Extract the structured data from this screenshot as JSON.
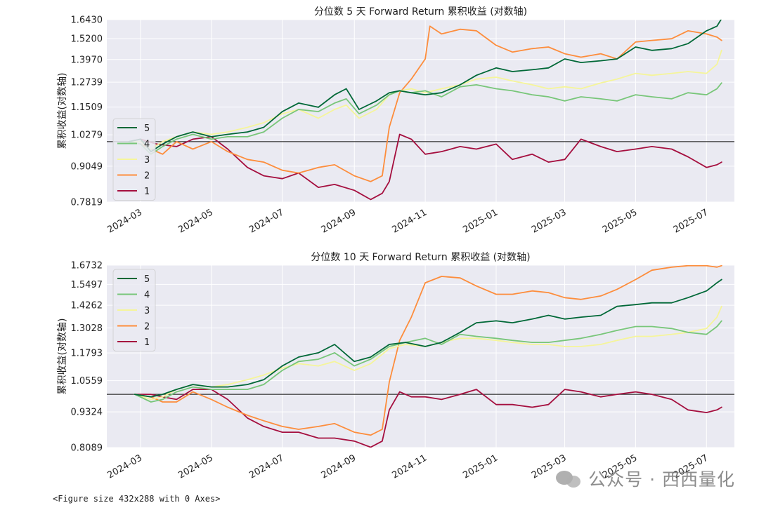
{
  "chart_data": [
    {
      "type": "line",
      "title": "分位数 5 天 Forward Return 累积收益 (对数轴)",
      "ylabel": "累积收益(对数轴)",
      "yscale": "log",
      "ylim": [
        0.7819,
        1.643
      ],
      "yticks": [
        "0.7819",
        "0.9049",
        "1.0279",
        "1.1509",
        "1.2739",
        "1.3970",
        "1.5200",
        "1.6430"
      ],
      "xlim": [
        "2024-02-01",
        "2025-07-25"
      ],
      "xticks": [
        "2024-03",
        "2024-05",
        "2024-07",
        "2024-09",
        "2024-11",
        "2025-01",
        "2025-03",
        "2025-05",
        "2025-07"
      ],
      "hline": 1.0,
      "grid": true,
      "legend_position": "left",
      "series": [
        {
          "name": "5",
          "color": "#006837",
          "x": [
            "2024-02-20",
            "2024-03-01",
            "2024-03-10",
            "2024-03-20",
            "2024-04-01",
            "2024-04-15",
            "2024-05-01",
            "2024-05-15",
            "2024-06-01",
            "2024-06-15",
            "2024-07-01",
            "2024-07-15",
            "2024-08-01",
            "2024-08-15",
            "2024-08-25",
            "2024-09-05",
            "2024-09-20",
            "2024-10-01",
            "2024-10-10",
            "2024-10-20",
            "2024-11-01",
            "2024-11-15",
            "2024-12-01",
            "2024-12-15",
            "2025-01-01",
            "2025-01-15",
            "2025-02-01",
            "2025-02-15",
            "2025-03-01",
            "2025-03-15",
            "2025-04-01",
            "2025-04-15",
            "2025-05-01",
            "2025-05-15",
            "2025-06-01",
            "2025-06-15",
            "2025-07-01",
            "2025-07-10",
            "2025-07-14"
          ],
          "values": [
            1.0,
            1.01,
            0.96,
            0.99,
            1.02,
            1.04,
            1.02,
            1.03,
            1.04,
            1.06,
            1.13,
            1.17,
            1.15,
            1.21,
            1.24,
            1.14,
            1.18,
            1.22,
            1.23,
            1.22,
            1.21,
            1.22,
            1.26,
            1.31,
            1.35,
            1.33,
            1.34,
            1.35,
            1.4,
            1.38,
            1.39,
            1.4,
            1.47,
            1.45,
            1.46,
            1.49,
            1.57,
            1.6,
            1.65
          ]
        },
        {
          "name": "4",
          "color": "#78c679",
          "x": [
            "2024-02-20",
            "2024-03-01",
            "2024-03-10",
            "2024-03-20",
            "2024-04-01",
            "2024-04-15",
            "2024-05-01",
            "2024-05-15",
            "2024-06-01",
            "2024-06-15",
            "2024-07-01",
            "2024-07-15",
            "2024-08-01",
            "2024-08-15",
            "2024-08-25",
            "2024-09-05",
            "2024-09-20",
            "2024-10-01",
            "2024-10-10",
            "2024-10-20",
            "2024-11-01",
            "2024-11-15",
            "2024-12-01",
            "2024-12-15",
            "2025-01-01",
            "2025-01-15",
            "2025-02-01",
            "2025-02-15",
            "2025-03-01",
            "2025-03-15",
            "2025-04-01",
            "2025-04-15",
            "2025-05-01",
            "2025-05-15",
            "2025-06-01",
            "2025-06-15",
            "2025-07-01",
            "2025-07-10",
            "2025-07-14"
          ],
          "values": [
            1.0,
            0.99,
            0.95,
            0.98,
            1.01,
            1.03,
            1.01,
            1.02,
            1.02,
            1.04,
            1.1,
            1.14,
            1.13,
            1.17,
            1.19,
            1.12,
            1.16,
            1.21,
            1.23,
            1.22,
            1.23,
            1.2,
            1.25,
            1.26,
            1.24,
            1.23,
            1.21,
            1.2,
            1.18,
            1.2,
            1.19,
            1.18,
            1.21,
            1.2,
            1.19,
            1.22,
            1.21,
            1.24,
            1.27
          ]
        },
        {
          "name": "3",
          "color": "#f5f59a",
          "x": [
            "2024-02-20",
            "2024-03-01",
            "2024-03-10",
            "2024-03-20",
            "2024-04-01",
            "2024-04-15",
            "2024-05-01",
            "2024-05-15",
            "2024-06-01",
            "2024-06-15",
            "2024-07-01",
            "2024-07-15",
            "2024-08-01",
            "2024-08-15",
            "2024-08-25",
            "2024-09-05",
            "2024-09-20",
            "2024-10-01",
            "2024-10-10",
            "2024-10-20",
            "2024-11-01",
            "2024-11-15",
            "2024-12-01",
            "2024-12-15",
            "2025-01-01",
            "2025-01-15",
            "2025-02-01",
            "2025-02-15",
            "2025-03-01",
            "2025-03-15",
            "2025-04-01",
            "2025-04-15",
            "2025-05-01",
            "2025-05-15",
            "2025-06-01",
            "2025-06-15",
            "2025-07-01",
            "2025-07-10",
            "2025-07-14"
          ],
          "values": [
            1.0,
            1.0,
            0.97,
            1.0,
            1.02,
            1.04,
            1.03,
            1.04,
            1.06,
            1.08,
            1.12,
            1.14,
            1.1,
            1.14,
            1.16,
            1.1,
            1.14,
            1.21,
            1.23,
            1.24,
            1.22,
            1.24,
            1.26,
            1.29,
            1.3,
            1.28,
            1.26,
            1.24,
            1.25,
            1.24,
            1.27,
            1.29,
            1.32,
            1.31,
            1.32,
            1.33,
            1.32,
            1.37,
            1.45
          ]
        },
        {
          "name": "2",
          "color": "#fd8d3c",
          "x": [
            "2024-02-20",
            "2024-03-01",
            "2024-03-10",
            "2024-03-20",
            "2024-04-01",
            "2024-04-15",
            "2024-05-01",
            "2024-05-15",
            "2024-06-01",
            "2024-06-15",
            "2024-07-01",
            "2024-07-15",
            "2024-08-01",
            "2024-08-15",
            "2024-09-01",
            "2024-09-15",
            "2024-09-25",
            "2024-10-01",
            "2024-10-10",
            "2024-10-20",
            "2024-11-01",
            "2024-11-05",
            "2024-11-15",
            "2024-12-01",
            "2024-12-15",
            "2025-01-01",
            "2025-01-15",
            "2025-02-01",
            "2025-02-15",
            "2025-03-01",
            "2025-03-15",
            "2025-04-01",
            "2025-04-15",
            "2025-05-01",
            "2025-05-15",
            "2025-06-01",
            "2025-06-15",
            "2025-07-01",
            "2025-07-10",
            "2025-07-14"
          ],
          "values": [
            1.0,
            0.99,
            0.97,
            0.95,
            1.0,
            0.97,
            1.0,
            0.96,
            0.93,
            0.92,
            0.89,
            0.88,
            0.9,
            0.91,
            0.87,
            0.85,
            0.87,
            1.06,
            1.22,
            1.29,
            1.4,
            1.6,
            1.55,
            1.58,
            1.57,
            1.48,
            1.44,
            1.46,
            1.47,
            1.43,
            1.41,
            1.43,
            1.4,
            1.5,
            1.51,
            1.52,
            1.57,
            1.55,
            1.53,
            1.51
          ]
        },
        {
          "name": "1",
          "color": "#a50f3f",
          "x": [
            "2024-02-20",
            "2024-03-01",
            "2024-03-15",
            "2024-04-01",
            "2024-04-15",
            "2024-05-01",
            "2024-05-15",
            "2024-06-01",
            "2024-06-15",
            "2024-07-01",
            "2024-07-15",
            "2024-08-01",
            "2024-08-15",
            "2024-09-01",
            "2024-09-15",
            "2024-09-25",
            "2024-10-01",
            "2024-10-10",
            "2024-10-20",
            "2024-11-01",
            "2024-11-15",
            "2024-12-01",
            "2024-12-15",
            "2025-01-01",
            "2025-01-15",
            "2025-02-01",
            "2025-02-15",
            "2025-03-01",
            "2025-03-15",
            "2025-04-01",
            "2025-04-15",
            "2025-05-01",
            "2025-05-15",
            "2025-06-01",
            "2025-06-15",
            "2025-07-01",
            "2025-07-10",
            "2025-07-14"
          ],
          "values": [
            1.0,
            1.01,
            0.99,
            0.98,
            1.01,
            1.02,
            0.97,
            0.9,
            0.87,
            0.86,
            0.88,
            0.83,
            0.84,
            0.82,
            0.79,
            0.81,
            0.85,
            1.03,
            1.01,
            0.95,
            0.96,
            0.98,
            0.97,
            0.99,
            0.93,
            0.95,
            0.92,
            0.93,
            1.01,
            0.98,
            0.96,
            0.97,
            0.98,
            0.97,
            0.94,
            0.9,
            0.91,
            0.92
          ]
        }
      ]
    },
    {
      "type": "line",
      "title": "分位数 10 天 Forward Return 累积收益 (对数轴)",
      "ylabel": "累积收益(对数轴)",
      "yscale": "log",
      "ylim": [
        0.8089,
        1.6732
      ],
      "yticks": [
        "0.8089",
        "0.9324",
        "1.0559",
        "1.1793",
        "1.3028",
        "1.4262",
        "1.5497",
        "1.6732"
      ],
      "xlim": [
        "2024-02-01",
        "2025-07-25"
      ],
      "xticks": [
        "2024-03",
        "2024-05",
        "2024-07",
        "2024-09",
        "2024-11",
        "2025-01",
        "2025-03",
        "2025-05",
        "2025-07"
      ],
      "hline": 1.0,
      "grid": true,
      "legend_position": "upper left",
      "series": [
        {
          "name": "5",
          "color": "#006837",
          "x": [
            "2024-02-25",
            "2024-03-10",
            "2024-03-20",
            "2024-04-01",
            "2024-04-15",
            "2024-05-01",
            "2024-05-15",
            "2024-06-01",
            "2024-06-15",
            "2024-07-01",
            "2024-07-15",
            "2024-08-01",
            "2024-08-15",
            "2024-09-01",
            "2024-09-15",
            "2024-10-01",
            "2024-10-15",
            "2024-11-01",
            "2024-11-15",
            "2024-12-01",
            "2024-12-15",
            "2025-01-01",
            "2025-01-15",
            "2025-02-01",
            "2025-02-15",
            "2025-03-01",
            "2025-03-15",
            "2025-04-01",
            "2025-04-15",
            "2025-05-01",
            "2025-05-15",
            "2025-06-01",
            "2025-06-15",
            "2025-07-01",
            "2025-07-10",
            "2025-07-14"
          ],
          "values": [
            1.0,
            0.99,
            1.0,
            1.02,
            1.04,
            1.03,
            1.03,
            1.04,
            1.06,
            1.12,
            1.16,
            1.18,
            1.22,
            1.14,
            1.16,
            1.22,
            1.23,
            1.21,
            1.23,
            1.28,
            1.33,
            1.34,
            1.33,
            1.35,
            1.37,
            1.35,
            1.36,
            1.37,
            1.42,
            1.43,
            1.44,
            1.44,
            1.47,
            1.51,
            1.56,
            1.58
          ]
        },
        {
          "name": "4",
          "color": "#78c679",
          "x": [
            "2024-02-25",
            "2024-03-10",
            "2024-03-20",
            "2024-04-01",
            "2024-04-15",
            "2024-05-01",
            "2024-05-15",
            "2024-06-01",
            "2024-06-15",
            "2024-07-01",
            "2024-07-15",
            "2024-08-01",
            "2024-08-15",
            "2024-09-01",
            "2024-09-15",
            "2024-10-01",
            "2024-10-15",
            "2024-11-01",
            "2024-11-15",
            "2024-12-01",
            "2024-12-15",
            "2025-01-01",
            "2025-01-15",
            "2025-02-01",
            "2025-02-15",
            "2025-03-01",
            "2025-03-15",
            "2025-04-01",
            "2025-04-15",
            "2025-05-01",
            "2025-05-15",
            "2025-06-01",
            "2025-06-15",
            "2025-07-01",
            "2025-07-10",
            "2025-07-14"
          ],
          "values": [
            1.0,
            0.97,
            0.98,
            1.01,
            1.03,
            1.02,
            1.02,
            1.02,
            1.04,
            1.1,
            1.14,
            1.15,
            1.18,
            1.12,
            1.15,
            1.21,
            1.23,
            1.25,
            1.22,
            1.27,
            1.26,
            1.25,
            1.24,
            1.23,
            1.23,
            1.24,
            1.25,
            1.27,
            1.29,
            1.31,
            1.31,
            1.3,
            1.28,
            1.27,
            1.31,
            1.34
          ]
        },
        {
          "name": "3",
          "color": "#f5f59a",
          "x": [
            "2024-02-25",
            "2024-03-10",
            "2024-03-20",
            "2024-04-01",
            "2024-04-15",
            "2024-05-01",
            "2024-05-15",
            "2024-06-01",
            "2024-06-15",
            "2024-07-01",
            "2024-07-15",
            "2024-08-01",
            "2024-08-15",
            "2024-09-01",
            "2024-09-15",
            "2024-10-01",
            "2024-10-15",
            "2024-11-01",
            "2024-11-15",
            "2024-12-01",
            "2024-12-15",
            "2025-01-01",
            "2025-01-15",
            "2025-02-01",
            "2025-02-15",
            "2025-03-01",
            "2025-03-15",
            "2025-04-01",
            "2025-04-15",
            "2025-05-01",
            "2025-05-15",
            "2025-06-01",
            "2025-06-15",
            "2025-07-01",
            "2025-07-10",
            "2025-07-14"
          ],
          "values": [
            1.0,
            0.98,
            0.99,
            1.02,
            1.04,
            1.03,
            1.04,
            1.06,
            1.08,
            1.11,
            1.13,
            1.12,
            1.14,
            1.1,
            1.13,
            1.2,
            1.22,
            1.21,
            1.23,
            1.25,
            1.25,
            1.24,
            1.23,
            1.22,
            1.22,
            1.21,
            1.21,
            1.22,
            1.24,
            1.26,
            1.26,
            1.27,
            1.28,
            1.3,
            1.36,
            1.42
          ]
        },
        {
          "name": "2",
          "color": "#fd8d3c",
          "x": [
            "2024-02-25",
            "2024-03-10",
            "2024-03-20",
            "2024-04-01",
            "2024-04-15",
            "2024-05-01",
            "2024-05-15",
            "2024-06-01",
            "2024-06-15",
            "2024-07-01",
            "2024-07-15",
            "2024-08-01",
            "2024-08-15",
            "2024-09-01",
            "2024-09-15",
            "2024-09-25",
            "2024-10-01",
            "2024-10-10",
            "2024-10-20",
            "2024-11-01",
            "2024-11-15",
            "2024-12-01",
            "2024-12-15",
            "2025-01-01",
            "2025-01-15",
            "2025-02-01",
            "2025-02-15",
            "2025-03-01",
            "2025-03-15",
            "2025-04-01",
            "2025-04-15",
            "2025-05-01",
            "2025-05-15",
            "2025-06-01",
            "2025-06-15",
            "2025-07-01",
            "2025-07-10",
            "2025-07-14"
          ],
          "values": [
            1.0,
            0.99,
            0.97,
            0.97,
            1.01,
            0.98,
            0.95,
            0.92,
            0.9,
            0.88,
            0.87,
            0.88,
            0.89,
            0.86,
            0.85,
            0.87,
            1.05,
            1.24,
            1.36,
            1.56,
            1.6,
            1.59,
            1.54,
            1.49,
            1.49,
            1.51,
            1.5,
            1.47,
            1.46,
            1.48,
            1.52,
            1.58,
            1.64,
            1.66,
            1.67,
            1.67,
            1.66,
            1.67
          ]
        },
        {
          "name": "1",
          "color": "#a50f3f",
          "x": [
            "2024-02-25",
            "2024-03-10",
            "2024-03-20",
            "2024-04-01",
            "2024-04-15",
            "2024-05-01",
            "2024-05-15",
            "2024-06-01",
            "2024-06-15",
            "2024-07-01",
            "2024-07-15",
            "2024-08-01",
            "2024-08-15",
            "2024-09-01",
            "2024-09-15",
            "2024-09-25",
            "2024-10-01",
            "2024-10-10",
            "2024-10-20",
            "2024-11-01",
            "2024-11-15",
            "2024-12-01",
            "2024-12-15",
            "2025-01-01",
            "2025-01-15",
            "2025-02-01",
            "2025-02-15",
            "2025-03-01",
            "2025-03-15",
            "2025-04-01",
            "2025-04-15",
            "2025-05-01",
            "2025-05-15",
            "2025-06-01",
            "2025-06-15",
            "2025-07-01",
            "2025-07-10",
            "2025-07-14"
          ],
          "values": [
            1.0,
            1.0,
            0.99,
            0.98,
            1.02,
            1.02,
            0.98,
            0.91,
            0.88,
            0.86,
            0.86,
            0.84,
            0.84,
            0.83,
            0.81,
            0.83,
            0.94,
            1.01,
            0.99,
            0.99,
            0.98,
            1.0,
            1.02,
            0.96,
            0.96,
            0.95,
            0.96,
            1.02,
            1.01,
            0.99,
            1.0,
            1.01,
            1.0,
            0.98,
            0.94,
            0.93,
            0.94,
            0.95
          ]
        }
      ]
    }
  ],
  "colors": {
    "axes_background": "#eaeaf2",
    "grid": "#ffffff",
    "reference_line": "#333333"
  },
  "console_text": "<Figure size 432x288 with 0 Axes>",
  "watermark": {
    "icon": "wechat-logo-icon",
    "text": "公众号 · 西西量化"
  }
}
